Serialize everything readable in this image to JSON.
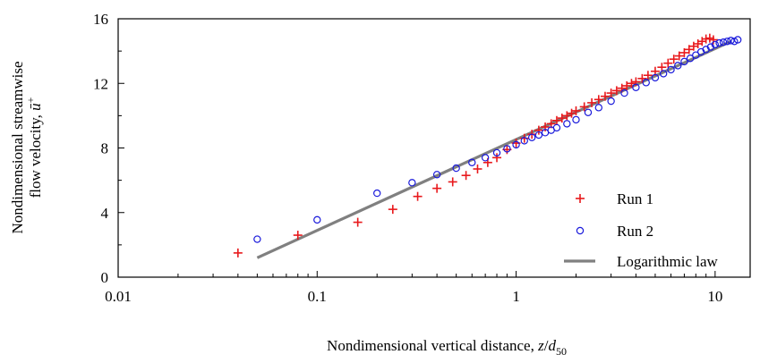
{
  "chart_data": {
    "type": "scatter",
    "title": "",
    "xlabel": {
      "main": "Nondimensional vertical distance, ",
      "var": "z",
      "slash": "/",
      "sub_base": "d",
      "sub": "50"
    },
    "ylabel": {
      "line1": "Nondimensional streamwise",
      "line2": "flow velocity, ",
      "var": "ū",
      "sup": "+"
    },
    "x_scale": "log",
    "xlim": [
      0.01,
      15
    ],
    "ylim": [
      0,
      16
    ],
    "x_ticks": [
      {
        "value": 0.01,
        "label": "0.01"
      },
      {
        "value": 0.1,
        "label": "0.1"
      },
      {
        "value": 1,
        "label": "1"
      },
      {
        "value": 10,
        "label": "10"
      }
    ],
    "y_ticks": [
      {
        "value": 0,
        "label": "0"
      },
      {
        "value": 4,
        "label": "4"
      },
      {
        "value": 8,
        "label": "8"
      },
      {
        "value": 12,
        "label": "12"
      },
      {
        "value": 16,
        "label": "16"
      }
    ],
    "grid": false,
    "legend_position": "bottom-right",
    "series": [
      {
        "name": "Run 1",
        "marker": "plus",
        "color": "#e8191c",
        "x": [
          0.04,
          0.08,
          0.16,
          0.24,
          0.32,
          0.4,
          0.48,
          0.56,
          0.64,
          0.72,
          0.8,
          0.9,
          1.0,
          1.1,
          1.2,
          1.3,
          1.4,
          1.5,
          1.6,
          1.7,
          1.8,
          1.9,
          2.0,
          2.2,
          2.4,
          2.6,
          2.8,
          3.0,
          3.2,
          3.4,
          3.6,
          3.8,
          4.0,
          4.3,
          4.6,
          5.0,
          5.4,
          5.8,
          6.2,
          6.6,
          7.0,
          7.4,
          7.8,
          8.2,
          8.6,
          9.0,
          9.4,
          9.8
        ],
        "y": [
          1.5,
          2.6,
          3.4,
          4.2,
          5.0,
          5.5,
          5.9,
          6.3,
          6.7,
          7.1,
          7.4,
          7.9,
          8.3,
          8.6,
          8.85,
          9.1,
          9.3,
          9.5,
          9.7,
          9.85,
          10.0,
          10.15,
          10.3,
          10.55,
          10.8,
          11.0,
          11.2,
          11.4,
          11.55,
          11.7,
          11.85,
          12.0,
          12.1,
          12.3,
          12.5,
          12.75,
          13.0,
          13.25,
          13.5,
          13.7,
          13.9,
          14.1,
          14.3,
          14.45,
          14.6,
          14.75,
          14.8,
          14.7
        ]
      },
      {
        "name": "Run 2",
        "marker": "circle",
        "color": "#1a1adb",
        "x": [
          0.05,
          0.1,
          0.2,
          0.3,
          0.4,
          0.5,
          0.6,
          0.7,
          0.8,
          0.9,
          1.0,
          1.1,
          1.2,
          1.3,
          1.4,
          1.5,
          1.6,
          1.8,
          2.0,
          2.3,
          2.6,
          3.0,
          3.5,
          4.0,
          4.5,
          5.0,
          5.5,
          6.0,
          6.5,
          7.0,
          7.5,
          8.0,
          8.5,
          9.0,
          9.5,
          10.0,
          10.5,
          11.0,
          11.5,
          12.0,
          12.5,
          13.0
        ],
        "y": [
          2.35,
          3.55,
          5.2,
          5.85,
          6.35,
          6.75,
          7.1,
          7.4,
          7.7,
          7.95,
          8.2,
          8.45,
          8.65,
          8.8,
          8.95,
          9.1,
          9.25,
          9.5,
          9.75,
          10.2,
          10.5,
          10.9,
          11.4,
          11.75,
          12.05,
          12.35,
          12.6,
          12.85,
          13.1,
          13.35,
          13.55,
          13.75,
          13.95,
          14.1,
          14.25,
          14.4,
          14.5,
          14.55,
          14.6,
          14.65,
          14.6,
          14.7
        ]
      },
      {
        "name": "Logarithmic law",
        "marker": "line",
        "color": "#808080",
        "x": [
          0.05,
          12.0
        ],
        "y": [
          1.2,
          14.6
        ]
      }
    ]
  }
}
